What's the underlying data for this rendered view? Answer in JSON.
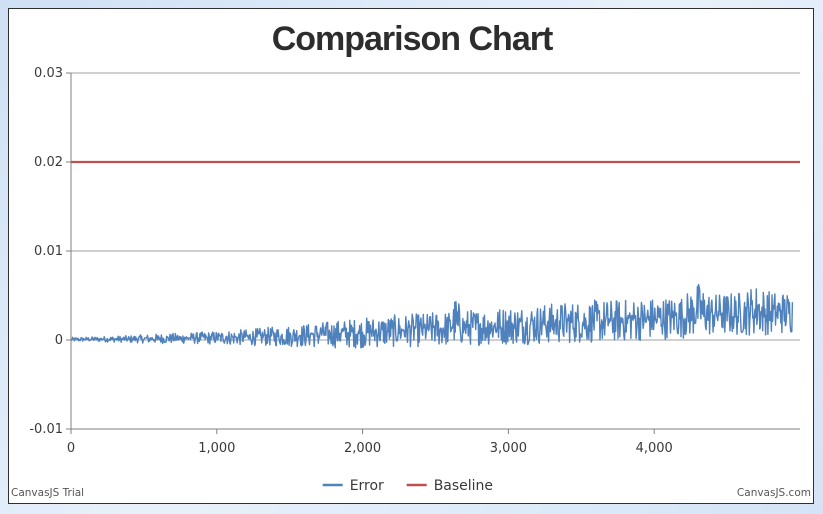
{
  "chart_data": {
    "type": "line",
    "title": "Comparison Chart",
    "xlabel": "",
    "ylabel": "",
    "xlim": [
      0,
      5000
    ],
    "ylim": [
      -0.01,
      0.03
    ],
    "x_ticks": [
      {
        "value": 0,
        "label": "0"
      },
      {
        "value": 1000,
        "label": "1,000"
      },
      {
        "value": 2000,
        "label": "2,000"
      },
      {
        "value": 3000,
        "label": "3,000"
      },
      {
        "value": 4000,
        "label": "4,000"
      }
    ],
    "y_ticks": [
      {
        "value": -0.01,
        "label": "-0.01"
      },
      {
        "value": 0,
        "label": "0"
      },
      {
        "value": 0.01,
        "label": "0.01"
      },
      {
        "value": 0.02,
        "label": "0.02"
      },
      {
        "value": 0.03,
        "label": "0.03"
      }
    ],
    "grid": true,
    "legend_position": "bottom-center",
    "series": [
      {
        "name": "Error",
        "color": "#4f81bc",
        "x": [
          0,
          200,
          400,
          600,
          800,
          1000,
          1200,
          1400,
          1600,
          1800,
          2000,
          2200,
          2400,
          2600,
          2640,
          2680,
          2800,
          3000,
          3200,
          3400,
          3600,
          3800,
          4000,
          4200,
          4300,
          4400,
          4600,
          4700,
          4800,
          4950
        ],
        "y_upper": [
          0.0003,
          0.0004,
          0.0005,
          0.0007,
          0.0008,
          0.001,
          0.0012,
          0.0015,
          0.0018,
          0.0022,
          0.0025,
          0.0028,
          0.003,
          0.0033,
          0.0051,
          0.0034,
          0.0035,
          0.0038,
          0.004,
          0.0043,
          0.0045,
          0.0046,
          0.0048,
          0.005,
          0.0065,
          0.0052,
          0.0055,
          0.0063,
          0.0055,
          0.0055
        ],
        "y_lower": [
          -0.0002,
          -0.0002,
          -0.0003,
          -0.0004,
          -0.0004,
          -0.0005,
          -0.0006,
          -0.0007,
          -0.0008,
          -0.0009,
          -0.0009,
          -0.0008,
          -0.0008,
          -0.0007,
          -0.0007,
          -0.0006,
          -0.0006,
          -0.0005,
          -0.0005,
          -0.0004,
          -0.0003,
          -0.0002,
          0.0,
          0.0002,
          0.0003,
          0.0004,
          0.0005,
          0.0005,
          0.0006,
          0.0007
        ]
      },
      {
        "name": "Baseline",
        "color": "#c0504e",
        "x": [
          0,
          5000
        ],
        "y": [
          0.02,
          0.02
        ]
      }
    ]
  },
  "credits": {
    "left": "CanvasJS Trial",
    "right": "CanvasJS.com"
  }
}
